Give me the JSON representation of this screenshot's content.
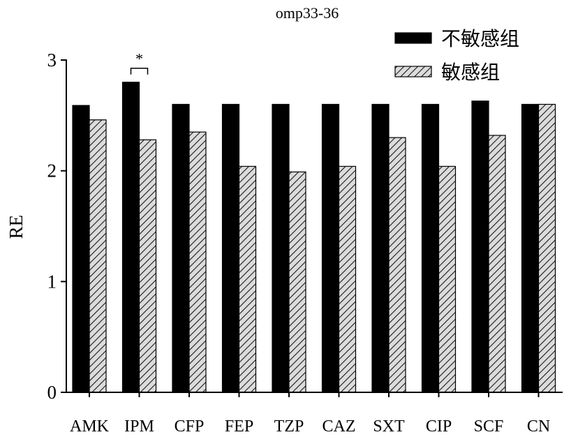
{
  "chart_data": {
    "type": "bar",
    "title": "omp33-36",
    "ylabel": "RE",
    "ylim": [
      0,
      3
    ],
    "yticks": [
      0,
      1,
      2,
      3
    ],
    "grid": false,
    "legend_position": "top-right",
    "categories": [
      "AMK",
      "IPM",
      "CFP",
      "FEP",
      "TZP",
      "CAZ",
      "SXT",
      "CIP",
      "SCF",
      "CN"
    ],
    "series": [
      {
        "name": "不敏感组",
        "color": "#000000",
        "hatch": false,
        "values": [
          2.59,
          2.8,
          2.6,
          2.6,
          2.6,
          2.6,
          2.6,
          2.6,
          2.63,
          2.6
        ]
      },
      {
        "name": "敏感组",
        "color": "#dcdcdc",
        "hatch": true,
        "hatch_color": "#1a1a1a",
        "values": [
          2.46,
          2.28,
          2.35,
          2.04,
          1.99,
          2.04,
          2.3,
          2.04,
          2.32,
          2.6
        ]
      }
    ],
    "annotations": [
      {
        "category_index": 1,
        "text": "*"
      }
    ]
  }
}
